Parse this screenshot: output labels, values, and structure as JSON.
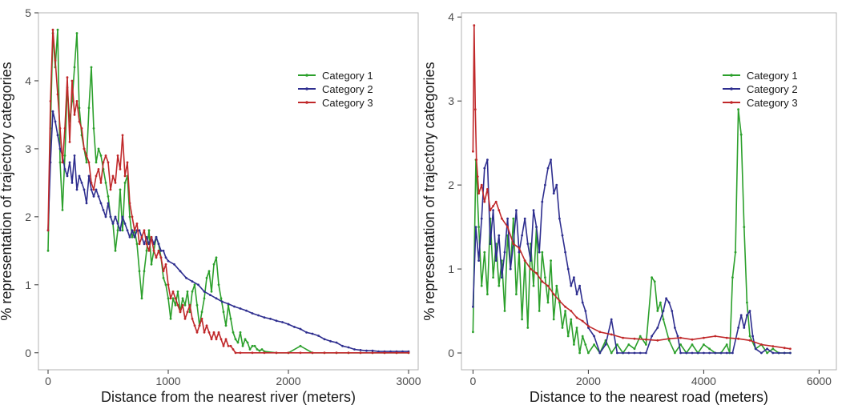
{
  "chart_data": [
    {
      "type": "line",
      "xlabel": "Distance from the nearest river (meters)",
      "ylabel": "% representation of trajectory categories",
      "xlim": [
        -80,
        3080
      ],
      "ylim": [
        -0.25,
        5.0
      ],
      "xticks": [
        0,
        1000,
        2000,
        3000
      ],
      "yticks": [
        0,
        1,
        2,
        3,
        4,
        5
      ],
      "grid": false,
      "legend": "top-right",
      "series": [
        {
          "name": "Category 1",
          "color": "#2ca02c",
          "x": [
            0,
            20,
            40,
            60,
            80,
            100,
            120,
            140,
            160,
            180,
            200,
            220,
            240,
            260,
            280,
            300,
            320,
            340,
            360,
            380,
            400,
            420,
            440,
            460,
            480,
            500,
            520,
            540,
            560,
            580,
            600,
            620,
            640,
            660,
            680,
            700,
            720,
            740,
            760,
            780,
            800,
            820,
            840,
            860,
            880,
            900,
            920,
            940,
            960,
            980,
            1000,
            1020,
            1040,
            1060,
            1080,
            1100,
            1120,
            1140,
            1160,
            1180,
            1200,
            1220,
            1240,
            1260,
            1280,
            1300,
            1320,
            1340,
            1360,
            1380,
            1400,
            1420,
            1440,
            1460,
            1480,
            1500,
            1520,
            1540,
            1560,
            1580,
            1600,
            1620,
            1640,
            1660,
            1680,
            1700,
            1720,
            1740,
            1760,
            1780,
            1800,
            1900,
            2000,
            2100,
            2200,
            2300,
            2400,
            2500,
            2600,
            2700,
            2800,
            2900,
            3000
          ],
          "values": [
            1.5,
            3.3,
            4.7,
            4.2,
            4.75,
            2.8,
            2.1,
            2.9,
            3.9,
            3.4,
            3.7,
            4.2,
            4.7,
            3.6,
            3.2,
            3.0,
            2.8,
            3.6,
            4.2,
            3.3,
            2.8,
            3.0,
            2.9,
            2.7,
            2.5,
            2.3,
            2.0,
            1.9,
            1.5,
            1.8,
            2.4,
            1.8,
            2.5,
            2.6,
            2.0,
            1.7,
            1.8,
            1.6,
            1.2,
            0.8,
            1.2,
            1.5,
            1.8,
            1.3,
            1.5,
            1.7,
            1.6,
            1.4,
            1.1,
            1.0,
            0.8,
            0.5,
            0.8,
            0.7,
            0.9,
            0.6,
            0.8,
            0.7,
            0.9,
            0.6,
            0.9,
            1.0,
            0.7,
            0.4,
            0.6,
            0.8,
            1.1,
            1.2,
            0.9,
            1.3,
            1.4,
            1.0,
            0.8,
            0.6,
            0.4,
            0.7,
            0.5,
            0.3,
            0.2,
            0.15,
            0.3,
            0.1,
            0.2,
            0.15,
            0.05,
            0.1,
            0.1,
            0.05,
            0.03,
            0.05,
            0.02,
            0.0,
            0.0,
            0.1,
            0.0,
            0.0,
            0.0,
            0.0,
            0.0,
            0.0,
            0.0,
            0.0,
            0.0
          ]
        },
        {
          "name": "Category 2",
          "color": "#2e2e8f",
          "x": [
            0,
            20,
            40,
            60,
            80,
            100,
            120,
            140,
            160,
            180,
            200,
            220,
            240,
            260,
            280,
            300,
            320,
            340,
            360,
            380,
            400,
            420,
            440,
            460,
            480,
            500,
            520,
            540,
            560,
            580,
            600,
            620,
            640,
            660,
            680,
            700,
            720,
            740,
            760,
            780,
            800,
            820,
            840,
            860,
            880,
            900,
            920,
            940,
            960,
            980,
            1000,
            1050,
            1100,
            1150,
            1200,
            1250,
            1300,
            1350,
            1400,
            1450,
            1500,
            1550,
            1600,
            1650,
            1700,
            1750,
            1800,
            1850,
            1900,
            1950,
            2000,
            2050,
            2100,
            2150,
            2200,
            2250,
            2300,
            2350,
            2400,
            2450,
            2500,
            2550,
            2600,
            2650,
            2700,
            2750,
            2800,
            2850,
            2900,
            2950,
            3000
          ],
          "values": [
            1.8,
            2.8,
            3.55,
            3.4,
            3.2,
            3.0,
            2.9,
            2.7,
            2.6,
            2.8,
            2.5,
            2.9,
            2.4,
            2.6,
            2.5,
            2.4,
            2.2,
            2.6,
            2.4,
            2.3,
            2.4,
            2.3,
            2.2,
            2.1,
            2.0,
            2.2,
            2.0,
            1.9,
            2.0,
            1.9,
            1.8,
            2.0,
            1.9,
            1.8,
            1.7,
            1.8,
            1.7,
            1.8,
            1.8,
            1.7,
            1.6,
            1.7,
            1.6,
            1.7,
            1.6,
            1.7,
            1.6,
            1.5,
            1.5,
            1.4,
            1.35,
            1.3,
            1.2,
            1.1,
            1.05,
            1.0,
            0.9,
            0.85,
            0.8,
            0.75,
            0.72,
            0.68,
            0.65,
            0.62,
            0.58,
            0.55,
            0.52,
            0.5,
            0.47,
            0.45,
            0.42,
            0.38,
            0.35,
            0.3,
            0.28,
            0.25,
            0.2,
            0.17,
            0.15,
            0.1,
            0.08,
            0.05,
            0.04,
            0.03,
            0.03,
            0.02,
            0.02,
            0.02,
            0.02,
            0.02,
            0.02
          ]
        },
        {
          "name": "Category 3",
          "color": "#c0282a",
          "x": [
            0,
            20,
            40,
            60,
            80,
            100,
            120,
            140,
            160,
            180,
            200,
            220,
            240,
            260,
            280,
            300,
            320,
            340,
            360,
            380,
            400,
            420,
            440,
            460,
            480,
            500,
            520,
            540,
            560,
            580,
            600,
            620,
            640,
            660,
            680,
            700,
            720,
            740,
            760,
            780,
            800,
            820,
            840,
            860,
            880,
            900,
            920,
            940,
            960,
            980,
            1000,
            1020,
            1040,
            1060,
            1080,
            1100,
            1120,
            1140,
            1160,
            1180,
            1200,
            1220,
            1240,
            1260,
            1280,
            1300,
            1320,
            1340,
            1360,
            1380,
            1400,
            1420,
            1440,
            1460,
            1480,
            1500,
            1520,
            1540,
            1560,
            1600,
            1700,
            1800,
            1900,
            2000,
            2100,
            2200,
            2300,
            2400,
            2500,
            2600,
            2700,
            2800,
            2900,
            3000
          ],
          "values": [
            1.8,
            3.7,
            4.75,
            4.3,
            3.8,
            3.3,
            2.8,
            3.3,
            4.05,
            3.1,
            4.0,
            3.5,
            3.7,
            3.4,
            3.3,
            3.0,
            2.9,
            2.8,
            2.5,
            2.4,
            2.6,
            2.7,
            2.5,
            2.8,
            2.9,
            2.8,
            2.4,
            2.6,
            2.5,
            2.9,
            2.7,
            3.2,
            2.6,
            2.8,
            2.2,
            2.0,
            1.8,
            1.9,
            1.6,
            1.7,
            1.8,
            1.6,
            1.5,
            1.7,
            1.5,
            1.4,
            1.5,
            1.4,
            1.2,
            1.3,
            1.0,
            0.8,
            0.9,
            0.8,
            0.7,
            0.6,
            0.7,
            0.5,
            0.6,
            0.7,
            0.5,
            0.4,
            0.3,
            0.4,
            0.5,
            0.3,
            0.4,
            0.3,
            0.2,
            0.3,
            0.2,
            0.3,
            0.2,
            0.1,
            0.2,
            0.1,
            0.1,
            0.05,
            0.0,
            0.0,
            0.0,
            0.0,
            0.0,
            0.0,
            0.0,
            0.0,
            0.0,
            0.0,
            0.0,
            0.0,
            0.0,
            0.0,
            0.0,
            0.0
          ]
        }
      ]
    },
    {
      "type": "line",
      "xlabel": "Distance to the nearest road (meters)",
      "ylabel": "% representation of trajectory categories",
      "xlim": [
        -200,
        6300
      ],
      "ylim": [
        -0.2,
        4.05
      ],
      "xticks": [
        0,
        2000,
        4000,
        6000
      ],
      "yticks": [
        0,
        1,
        2,
        3,
        4
      ],
      "grid": false,
      "legend": "top-right",
      "series": [
        {
          "name": "Category 1",
          "color": "#2ca02c",
          "x": [
            0,
            50,
            100,
            150,
            200,
            250,
            300,
            350,
            400,
            450,
            500,
            550,
            600,
            650,
            700,
            750,
            800,
            850,
            900,
            950,
            1000,
            1050,
            1100,
            1150,
            1200,
            1250,
            1300,
            1350,
            1400,
            1450,
            1500,
            1550,
            1600,
            1650,
            1700,
            1750,
            1800,
            1850,
            1900,
            1950,
            2000,
            2100,
            2200,
            2300,
            2400,
            2500,
            2600,
            2700,
            2800,
            2900,
            3000,
            3100,
            3150,
            3200,
            3250,
            3300,
            3400,
            3500,
            3600,
            3700,
            3800,
            3900,
            4000,
            4100,
            4200,
            4300,
            4400,
            4450,
            4500,
            4550,
            4600,
            4650,
            4700,
            4750,
            4800,
            4900,
            5000,
            5100,
            5200,
            5300,
            5400,
            5500
          ],
          "values": [
            0.25,
            2.3,
            1.5,
            0.8,
            1.2,
            0.7,
            1.6,
            0.9,
            1.3,
            0.8,
            1.1,
            0.5,
            1.4,
            1.0,
            1.6,
            0.7,
            1.2,
            0.4,
            1.1,
            0.3,
            1.3,
            0.8,
            1.5,
            0.5,
            1.2,
            0.9,
            0.6,
            1.1,
            0.4,
            0.8,
            0.6,
            0.3,
            0.5,
            0.2,
            0.4,
            0.1,
            0.3,
            0.0,
            0.2,
            0.1,
            0.0,
            0.1,
            0.0,
            0.15,
            0.0,
            0.1,
            0.0,
            0.1,
            0.05,
            0.2,
            0.1,
            0.9,
            0.85,
            0.5,
            0.6,
            0.4,
            0.15,
            0.0,
            0.1,
            0.0,
            0.1,
            0.0,
            0.1,
            0.05,
            0.0,
            0.0,
            0.1,
            0.0,
            0.9,
            1.2,
            2.9,
            2.6,
            1.5,
            0.6,
            0.2,
            0.05,
            0.1,
            0.0,
            0.05,
            0.0,
            0.0,
            0.0
          ]
        },
        {
          "name": "Category 2",
          "color": "#2e2e8f",
          "x": [
            0,
            50,
            100,
            150,
            200,
            250,
            300,
            350,
            400,
            450,
            500,
            550,
            600,
            650,
            700,
            750,
            800,
            850,
            900,
            950,
            1000,
            1050,
            1100,
            1150,
            1200,
            1250,
            1300,
            1350,
            1400,
            1450,
            1500,
            1550,
            1600,
            1650,
            1700,
            1750,
            1800,
            1850,
            1900,
            1950,
            2000,
            2100,
            2200,
            2300,
            2400,
            2500,
            2600,
            2700,
            2800,
            2900,
            3000,
            3100,
            3200,
            3300,
            3350,
            3400,
            3450,
            3500,
            3550,
            3600,
            3700,
            3800,
            3900,
            4000,
            4100,
            4200,
            4300,
            4400,
            4500,
            4600,
            4650,
            4700,
            4750,
            4800,
            4850,
            4900,
            5000,
            5100,
            5200,
            5300,
            5400,
            5500
          ],
          "values": [
            0.55,
            1.5,
            1.1,
            1.6,
            2.2,
            2.3,
            1.3,
            1.7,
            1.1,
            1.4,
            0.9,
            1.2,
            1.6,
            1.0,
            1.3,
            1.7,
            1.2,
            1.4,
            1.6,
            1.3,
            1.1,
            1.7,
            1.5,
            1.2,
            1.8,
            2.0,
            2.2,
            2.3,
            1.9,
            2.0,
            1.6,
            1.4,
            1.2,
            1.0,
            0.8,
            0.9,
            0.7,
            0.8,
            0.6,
            0.5,
            0.3,
            0.2,
            0.0,
            0.1,
            0.4,
            0.0,
            0.0,
            0.0,
            0.0,
            0.0,
            0.0,
            0.2,
            0.3,
            0.5,
            0.65,
            0.6,
            0.5,
            0.3,
            0.2,
            0.0,
            0.0,
            0.0,
            0.0,
            0.0,
            0.0,
            0.0,
            0.0,
            0.0,
            0.0,
            0.3,
            0.45,
            0.3,
            0.45,
            0.5,
            0.2,
            0.05,
            0.0,
            0.05,
            0.0,
            0.0,
            0.0,
            0.0
          ]
        },
        {
          "name": "Category 3",
          "color": "#c0282a",
          "x": [
            0,
            20,
            40,
            60,
            80,
            100,
            150,
            200,
            250,
            300,
            350,
            400,
            450,
            500,
            600,
            700,
            800,
            900,
            1000,
            1100,
            1200,
            1300,
            1400,
            1500,
            1600,
            1700,
            1800,
            1900,
            2000,
            2200,
            2400,
            2600,
            2800,
            3000,
            3200,
            3400,
            3600,
            3800,
            4000,
            4200,
            4400,
            4600,
            4800,
            5000,
            5200,
            5400,
            5500
          ],
          "values": [
            2.4,
            3.9,
            2.9,
            2.3,
            2.1,
            1.9,
            2.0,
            1.8,
            1.95,
            1.7,
            1.75,
            1.8,
            1.7,
            1.6,
            1.5,
            1.3,
            1.25,
            1.1,
            1.0,
            0.95,
            0.85,
            0.8,
            0.7,
            0.62,
            0.55,
            0.5,
            0.42,
            0.38,
            0.32,
            0.25,
            0.22,
            0.18,
            0.17,
            0.16,
            0.15,
            0.17,
            0.18,
            0.16,
            0.18,
            0.2,
            0.18,
            0.17,
            0.15,
            0.1,
            0.08,
            0.06,
            0.05
          ]
        }
      ]
    }
  ]
}
